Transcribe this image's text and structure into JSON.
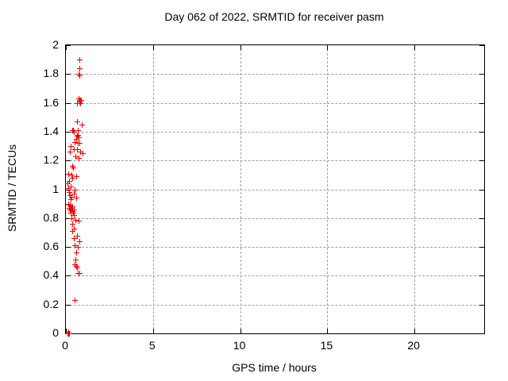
{
  "chart_data": {
    "type": "scatter",
    "title": "Day 062 of 2022, SRMTID for receiver pasm",
    "xlabel": "GPS time / hours",
    "ylabel": "SRMTID / TECUs",
    "xlim": [
      0,
      24
    ],
    "ylim": [
      0,
      2
    ],
    "x_ticks": [
      0,
      5,
      10,
      15,
      20
    ],
    "y_ticks": [
      0,
      0.2,
      0.4,
      0.6,
      0.8,
      1,
      1.2,
      1.4,
      1.6,
      1.8,
      2
    ],
    "grid": true,
    "legend_position": "none",
    "marker": "plus",
    "colors": {
      "marker": "#ee0000",
      "grid": "#a0a0a0",
      "axis": "#000000",
      "text": "#000000",
      "background": "#ffffff"
    },
    "series": [
      {
        "name": "SRMTID",
        "points": [
          [
            0.79,
            1.9
          ],
          [
            0.79,
            1.84
          ],
          [
            0.72,
            1.8
          ],
          [
            0.78,
            1.79
          ],
          [
            0.74,
            1.63
          ],
          [
            0.78,
            1.62
          ],
          [
            0.82,
            1.62
          ],
          [
            0.85,
            1.62
          ],
          [
            0.76,
            1.61
          ],
          [
            0.8,
            1.6
          ],
          [
            0.65,
            1.6
          ],
          [
            0.62,
            1.47
          ],
          [
            0.91,
            1.45
          ],
          [
            0.35,
            1.41
          ],
          [
            0.4,
            1.41
          ],
          [
            0.44,
            1.4
          ],
          [
            0.69,
            1.41
          ],
          [
            0.7,
            1.38
          ],
          [
            0.64,
            1.37
          ],
          [
            0.74,
            1.36
          ],
          [
            0.57,
            1.35
          ],
          [
            0.49,
            1.33
          ],
          [
            0.69,
            1.32
          ],
          [
            0.78,
            1.32
          ],
          [
            0.28,
            1.3
          ],
          [
            0.46,
            1.28
          ],
          [
            0.64,
            1.28
          ],
          [
            0.25,
            1.26
          ],
          [
            0.82,
            1.26
          ],
          [
            0.96,
            1.25
          ],
          [
            0.55,
            1.23
          ],
          [
            0.75,
            1.22
          ],
          [
            0.35,
            1.16
          ],
          [
            0.42,
            1.15
          ],
          [
            0.14,
            1.11
          ],
          [
            0.33,
            1.1
          ],
          [
            0.6,
            1.09
          ],
          [
            0.35,
            1.08
          ],
          [
            0.19,
            1.06
          ],
          [
            0.1,
            1.04
          ],
          [
            0.28,
            1.02
          ],
          [
            0.14,
            1.01
          ],
          [
            0.51,
            1.0
          ],
          [
            0.19,
            0.98
          ],
          [
            0.46,
            0.97
          ],
          [
            0.21,
            0.96
          ],
          [
            0.33,
            0.95
          ],
          [
            0.6,
            0.94
          ],
          [
            0.28,
            0.93
          ],
          [
            0.14,
            0.9
          ],
          [
            0.23,
            0.89
          ],
          [
            0.28,
            0.88
          ],
          [
            0.37,
            0.88
          ],
          [
            0.19,
            0.87
          ],
          [
            0.32,
            0.87
          ],
          [
            0.25,
            0.86
          ],
          [
            0.46,
            0.86
          ],
          [
            0.35,
            0.85
          ],
          [
            0.28,
            0.84
          ],
          [
            0.42,
            0.84
          ],
          [
            0.46,
            0.82
          ],
          [
            0.33,
            0.8
          ],
          [
            0.55,
            0.79
          ],
          [
            0.73,
            0.78
          ],
          [
            0.37,
            0.76
          ],
          [
            0.46,
            0.73
          ],
          [
            0.37,
            0.71
          ],
          [
            0.64,
            0.68
          ],
          [
            0.46,
            0.66
          ],
          [
            0.78,
            0.64
          ],
          [
            0.51,
            0.61
          ],
          [
            0.69,
            0.6
          ],
          [
            0.6,
            0.56
          ],
          [
            0.55,
            0.51
          ],
          [
            0.51,
            0.48
          ],
          [
            0.58,
            0.47
          ],
          [
            0.64,
            0.46
          ],
          [
            0.69,
            0.42
          ],
          [
            0.78,
            0.42
          ],
          [
            0.51,
            0.23
          ],
          [
            0.1,
            0.0
          ],
          [
            0.13,
            0.0
          ],
          [
            0.16,
            0.0
          ],
          [
            0.12,
            0.01
          ],
          [
            0.15,
            0.01
          ]
        ]
      }
    ]
  }
}
